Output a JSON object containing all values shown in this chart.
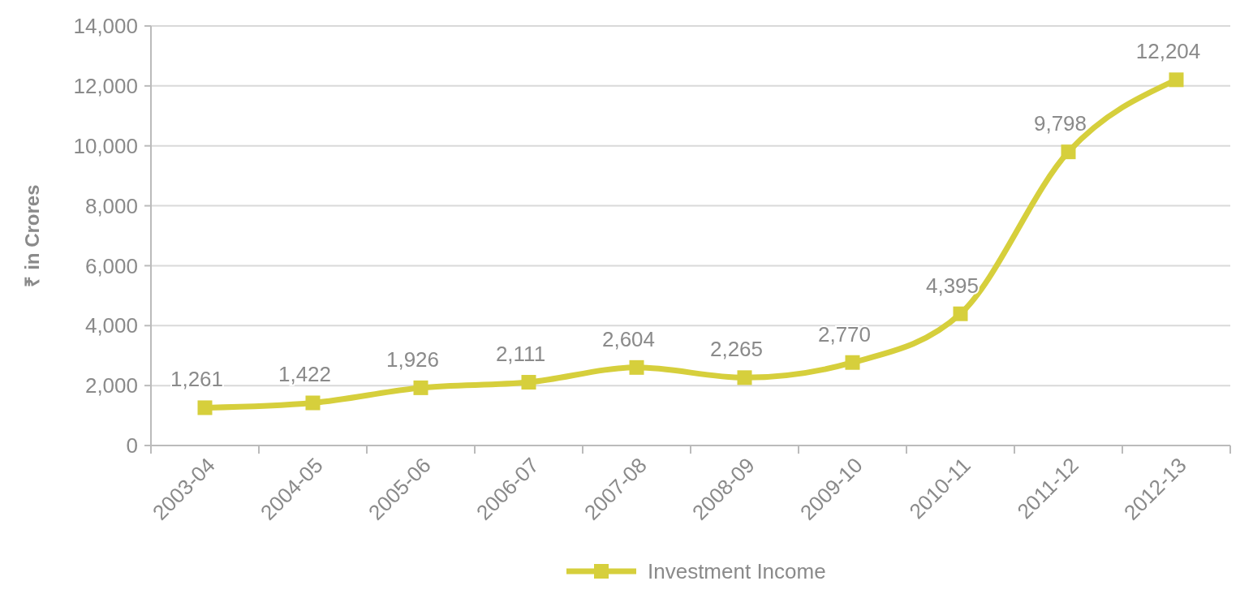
{
  "chart_data": {
    "type": "line",
    "ylabel": "₹ in Crores",
    "categories": [
      "2003-04",
      "2004-05",
      "2005-06",
      "2006-07",
      "2007-08",
      "2008-09",
      "2009-10",
      "2010-11",
      "2011-12",
      "2012-13"
    ],
    "series": [
      {
        "name": "Investment Income",
        "color": "#d6cf3c",
        "values": [
          1261,
          1422,
          1926,
          2111,
          2604,
          2265,
          2770,
          4395,
          9798,
          12204
        ],
        "value_labels": [
          "1,261",
          "1,422",
          "1,926",
          "2,111",
          "2,604",
          "2,265",
          "2,770",
          "4,395",
          "9,798",
          "12,204"
        ]
      }
    ],
    "ylim": [
      0,
      14000
    ],
    "yticks": [
      {
        "value": 0,
        "label": "0"
      },
      {
        "value": 2000,
        "label": "2,000"
      },
      {
        "value": 4000,
        "label": "4,000"
      },
      {
        "value": 6000,
        "label": "6,000"
      },
      {
        "value": 8000,
        "label": "8,000"
      },
      {
        "value": 10000,
        "label": "10,000"
      },
      {
        "value": 12000,
        "label": "12,000"
      },
      {
        "value": 14000,
        "label": "14,000"
      }
    ],
    "grid": "y",
    "legend": "bottom",
    "marker": "square",
    "line_style": "solid"
  }
}
